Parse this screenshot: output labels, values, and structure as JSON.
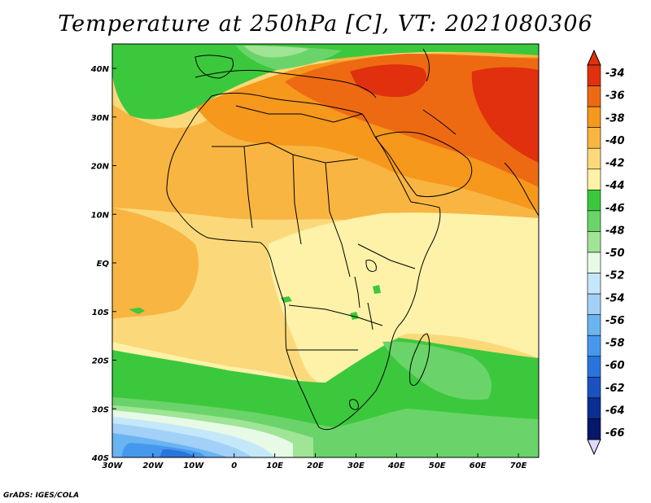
{
  "title": "Temperature at 250hPa [C], VT: 2021080306",
  "credit": "GrADS: IGES/COLA",
  "map": {
    "lon_labels": [
      "30W",
      "20W",
      "10W",
      "0",
      "10E",
      "20E",
      "30E",
      "40E",
      "50E",
      "60E",
      "70E"
    ],
    "lat_labels": [
      "40N",
      "30N",
      "20N",
      "10N",
      "EQ",
      "10S",
      "20S",
      "30S",
      "40S"
    ]
  },
  "colorbar": {
    "labels": [
      "-34",
      "-36",
      "-38",
      "-40",
      "-42",
      "-44",
      "-46",
      "-48",
      "-50",
      "-52",
      "-54",
      "-56",
      "-58",
      "-60",
      "-62",
      "-64",
      "-66"
    ],
    "colors": [
      "#e0300e",
      "#ee6a12",
      "#f5981c",
      "#f8b542",
      "#fbd97a",
      "#fdf2a8",
      "#3cc83c",
      "#6ad46a",
      "#a0e496",
      "#e6fae6",
      "#c4e8fa",
      "#a2d0f6",
      "#6ab4f2",
      "#4698ee",
      "#2a74de",
      "#1a52c0",
      "#0a2e92",
      "#06186a"
    ],
    "arrow_high": "#e0300e",
    "arrow_low": "#e2d8fc"
  },
  "palette": {
    "c34": "#e0300e",
    "c36": "#ee6a12",
    "c38": "#f5981c",
    "c40": "#f8b542",
    "c42": "#fbd97a",
    "c44": "#fdf2a8",
    "c46": "#3cc83c",
    "c48": "#6ad46a",
    "c50": "#a0e496",
    "c52": "#e6fae6",
    "c54": "#c4e8fa",
    "c56": "#a2d0f6",
    "c58": "#6ab4f2",
    "c60": "#4698ee",
    "c62": "#2a74de"
  }
}
